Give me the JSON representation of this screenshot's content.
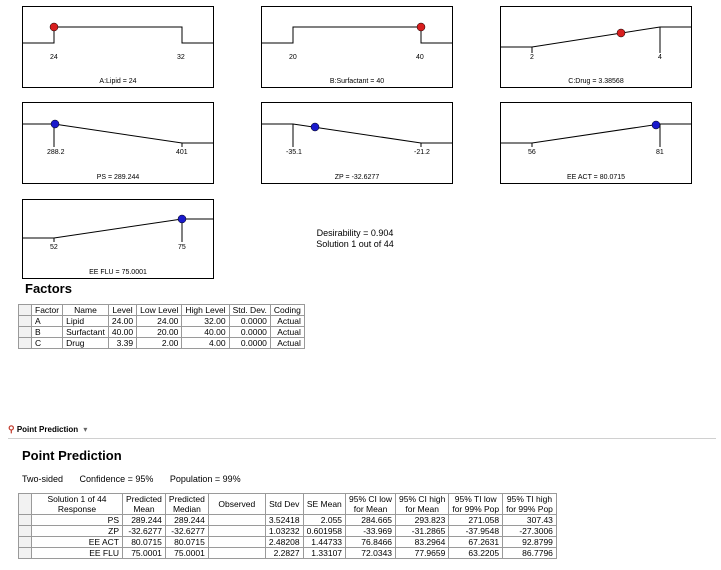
{
  "ramps": [
    {
      "id": "lipid",
      "title": "A:Lipid = 24",
      "low_label": "24",
      "high_label": "32",
      "shape": "step-left",
      "dot_color": "#d81e1e"
    },
    {
      "id": "surfactant",
      "title": "B:Surfactant = 40",
      "low_label": "20",
      "high_label": "40",
      "shape": "step-right",
      "dot_color": "#d81e1e"
    },
    {
      "id": "drug",
      "title": "C:Drug = 3.38568",
      "low_label": "2",
      "high_label": "4",
      "shape": "rise",
      "dot_color": "#d81e1e"
    },
    {
      "id": "ps",
      "title": "PS = 289.244",
      "low_label": "288.2",
      "high_label": "401",
      "shape": "fall-from-left",
      "dot_color": "#1a1acc"
    },
    {
      "id": "zp",
      "title": "ZP = -32.6277",
      "low_label": "-35.1",
      "high_label": "-21.2",
      "shape": "fall",
      "dot_color": "#1a1acc"
    },
    {
      "id": "ee_act",
      "title": "EE ACT = 80.0715",
      "low_label": "56",
      "high_label": "81",
      "shape": "rise-to-right",
      "dot_color": "#1a1acc"
    },
    {
      "id": "ee_flu",
      "title": "EE FLU = 75.0001",
      "low_label": "52",
      "high_label": "75",
      "shape": "rise-to-right",
      "dot_color": "#1a1acc"
    }
  ],
  "desirability": {
    "line1": "Desirability = 0.904",
    "line2": "Solution 1 out of 44"
  },
  "factors": {
    "heading": "Factors",
    "columns": [
      "Factor",
      "Name",
      "Level",
      "Low Level",
      "High Level",
      "Std. Dev.",
      "Coding"
    ],
    "rows": [
      [
        "A",
        "Lipid",
        "24.00",
        "24.00",
        "32.00",
        "0.0000",
        "Actual"
      ],
      [
        "B",
        "Surfactant",
        "40.00",
        "20.00",
        "40.00",
        "0.0000",
        "Actual"
      ],
      [
        "C",
        "Drug",
        "3.39",
        "2.00",
        "4.00",
        "0.0000",
        "Actual"
      ]
    ]
  },
  "point_prediction": {
    "tab_label": "Point Prediction",
    "heading": "Point Prediction",
    "two_sided": "Two-sided",
    "confidence": "Confidence = 95%",
    "population": "Population = 99%",
    "columns": [
      [
        "Solution 1 of 44",
        "Response"
      ],
      [
        "Predicted",
        "Mean"
      ],
      [
        "Predicted",
        "Median"
      ],
      [
        "Observed",
        ""
      ],
      [
        "Std Dev",
        ""
      ],
      [
        "SE Mean",
        ""
      ],
      [
        "95% CI low",
        "for Mean"
      ],
      [
        "95% CI high",
        "for Mean"
      ],
      [
        "95% TI low",
        "for 99% Pop"
      ],
      [
        "95% TI high",
        "for 99% Pop"
      ]
    ],
    "rows": [
      [
        "PS",
        "289.244",
        "289.244",
        "",
        "3.52418",
        "2.055",
        "284.665",
        "293.823",
        "271.058",
        "307.43"
      ],
      [
        "ZP",
        "-32.6277",
        "-32.6277",
        "",
        "1.03232",
        "0.601958",
        "-33.969",
        "-31.2865",
        "-37.9548",
        "-27.3006"
      ],
      [
        "EE ACT",
        "80.0715",
        "80.0715",
        "",
        "2.48208",
        "1.44733",
        "76.8466",
        "83.2964",
        "67.2631",
        "92.8799"
      ],
      [
        "EE FLU",
        "75.0001",
        "75.0001",
        "",
        "2.2827",
        "1.33107",
        "72.0343",
        "77.9659",
        "63.2205",
        "86.7796"
      ]
    ]
  }
}
